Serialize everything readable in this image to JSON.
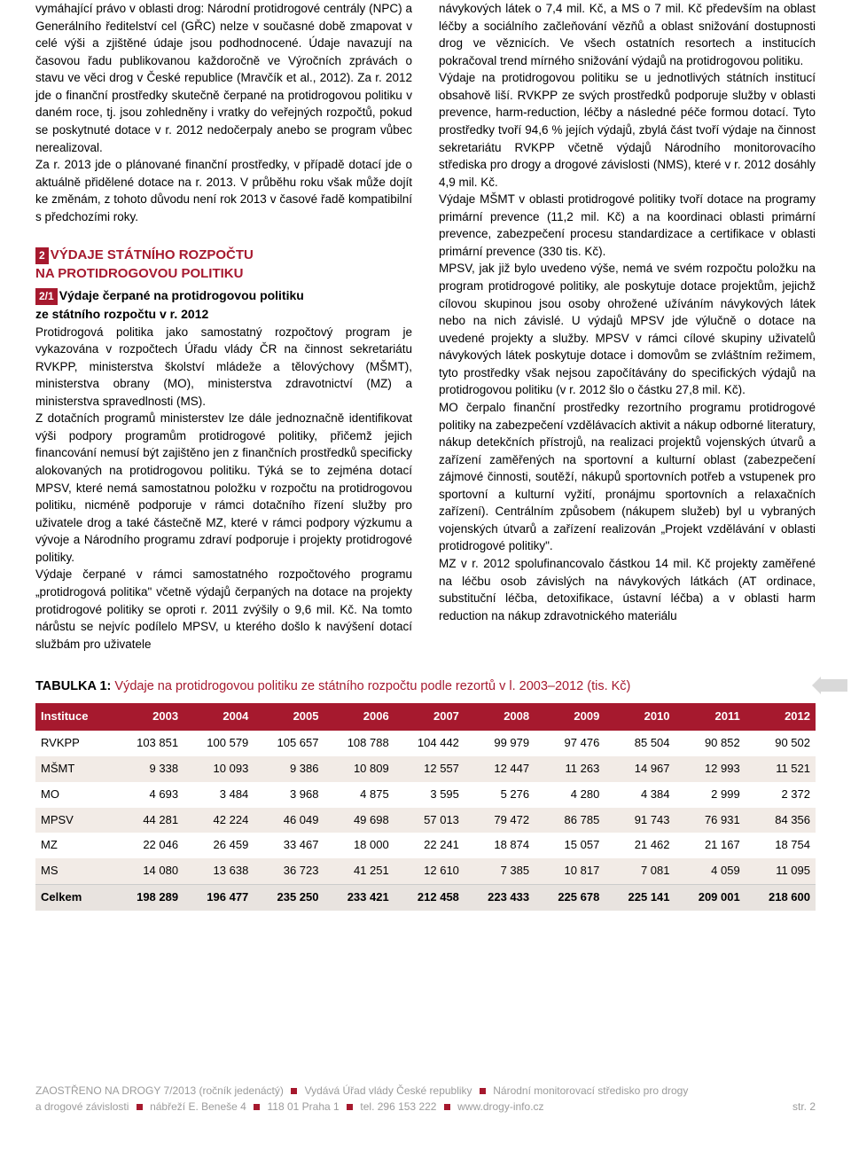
{
  "left": {
    "p1": "vymáhající právo v oblasti drog: Národní protidrogové centrály (NPC) a Generálního ředitelství cel (GŘC) nelze v současné době zmapovat v celé výši a zjištěné údaje jsou podhodnocené. Údaje navazují na časovou řadu publikovanou každoročně ve Výročních zprávách o stavu ve věci drog v České republice (Mravčík et al., 2012). Za r. 2012 jde o finanční prostředky skutečně čerpané na protidrogovou politiku v daném roce, tj. jsou zohledněny i vratky do veřejných rozpočtů, pokud se poskytnuté dotace v r. 2012 nedočerpaly anebo se program vůbec nerealizoval.",
    "p2": "Za r. 2013 jde o plánované finanční prostředky, v případě dotací jde o aktuálně přidělené dotace na r. 2013. V průběhu roku však může dojít ke změnám, z tohoto důvodu není rok 2013 v časové řadě kompatibilní s předchozími roky.",
    "badge2": "2",
    "h2a": "VÝDAJE STÁTNÍHO ROZPOČTU",
    "h2b": "NA PROTIDROGOVOU POLITIKU",
    "badge21": "2/1",
    "sub1a": "Výdaje čerpané na protidrogovou politiku",
    "sub1b": "ze státního rozpočtu v r. 2012",
    "p3": "Protidrogová politika jako samostatný rozpočtový program je vykazována v rozpočtech Úřadu vlády ČR na činnost sekretariátu RVKPP, ministerstva školství mládeže a tělovýchovy (MŠMT), ministerstva obrany (MO), ministerstva zdravotnictví (MZ) a ministerstva spravedlnosti (MS).",
    "p4": "Z dotačních programů ministerstev lze dále jednoznačně identifikovat výši podpory programům protidrogové politiky, přičemž jejich financování nemusí být zajištěno jen z finančních prostředků specificky alokovaných na protidrogovou politiku. Týká se to zejména dotací MPSV, které nemá samostatnou položku v rozpočtu na protidrogovou politiku, nicméně podporuje v rámci dotačního řízení služby pro uživatele drog a také částečně MZ, které v rámci podpory výzkumu a vývoje a Národního programu zdraví podporuje i projekty protidrogové politiky.",
    "p5": "Výdaje čerpané v rámci samostatného rozpočtového programu „protidrogová politika\" včetně výdajů čerpaných na dotace na projekty protidrogové politiky se oproti r. 2011 zvýšily o 9,6 mil. Kč. Na tomto nárůstu se nejvíc podílelo MPSV, u kterého došlo k navýšení dotací službám pro uživatele"
  },
  "right": {
    "p1": "návykových látek o 7,4 mil. Kč, a MS o 7 mil. Kč především na oblast léčby a sociálního začleňování vězňů a oblast snižování dostupnosti drog ve věznicích. Ve všech ostatních resortech a institucích pokračoval trend mírného snižování výdajů na protidrogovou politiku.",
    "p2": "Výdaje na protidrogovou politiku se u jednotlivých státních institucí obsahově liší. RVKPP ze svých prostředků podporuje služby v oblasti prevence, harm-reduction, léčby a následné péče formou dotací. Tyto prostředky tvoří 94,6 % jejích výdajů, zbylá část tvoří výdaje na činnost sekretariátu RVKPP včetně výdajů Národního monitorovacího střediska pro drogy a drogové závislosti (NMS), které v r. 2012 dosáhly 4,9 mil. Kč.",
    "p3": "Výdaje MŠMT v oblasti protidrogové politiky tvoří dotace na programy primární prevence (11,2 mil. Kč) a na koordinaci oblasti primární prevence, zabezpečení procesu standardizace a certifikace v oblasti primární prevence (330 tis. Kč).",
    "p4": "MPSV, jak již bylo uvedeno výše, nemá ve svém rozpočtu položku na program protidrogové politiky, ale poskytuje dotace projektům, jejichž cílovou skupinou jsou osoby ohrožené užíváním návykových látek nebo na nich závislé. U výdajů MPSV jde výlučně o dotace na uvedené projekty a služby. MPSV v rámci cílové skupiny uživatelů návykových látek poskytuje dotace i domovům se zvláštním režimem, tyto prostředky však nejsou započítávány do specifických výdajů na protidrogovou politiku (v r. 2012 šlo o částku 27,8 mil. Kč).",
    "p5": "MO čerpalo finanční prostředky rezortního programu protidrogové politiky na zabezpečení vzdělávacích aktivit a nákup odborné literatury, nákup detekčních přístrojů, na realizaci projektů vojenských útvarů a zařízení zaměřených na sportovní a kulturní oblast (zabezpečení zájmové činnosti, soutěží, nákupů sportovních potřeb a vstupenek pro sportovní a kulturní vyžití, pronájmu sportovních a relaxačních zařízení). Centrálním způsobem (nákupem služeb) byl u vybraných vojenských útvarů a zařízení realizován „Projekt vzdělávání v oblasti protidrogové politiky\".",
    "p6": "MZ v r. 2012 spolufinancovalo částkou 14 mil. Kč projekty zaměřené na léčbu osob závislých na návykových látkách (AT ordinace, substituční léčba, detoxifikace, ústavní léčba) a v oblasti harm reduction na nákup zdravotnického materiálu"
  },
  "table": {
    "title_strong": "TABULKA 1:",
    "title_rest": " Výdaje na protidrogovou politiku ze státního rozpočtu podle rezortů v l. 2003–2012 (tis. Kč)",
    "headers": [
      "Instituce",
      "2003",
      "2004",
      "2005",
      "2006",
      "2007",
      "2008",
      "2009",
      "2010",
      "2011",
      "2012"
    ],
    "rows": [
      {
        "stripe": false,
        "cells": [
          "RVKPP",
          "103 851",
          "100 579",
          "105 657",
          "108 788",
          "104 442",
          "99 979",
          "97 476",
          "85 504",
          "90 852",
          "90 502"
        ]
      },
      {
        "stripe": true,
        "cells": [
          "MŠMT",
          "9 338",
          "10 093",
          "9 386",
          "10 809",
          "12 557",
          "12 447",
          "11 263",
          "14 967",
          "12 993",
          "11 521"
        ]
      },
      {
        "stripe": false,
        "cells": [
          "MO",
          "4 693",
          "3 484",
          "3 968",
          "4 875",
          "3 595",
          "5 276",
          "4 280",
          "4 384",
          "2 999",
          "2 372"
        ]
      },
      {
        "stripe": true,
        "cells": [
          "MPSV",
          "44 281",
          "42 224",
          "46 049",
          "49 698",
          "57 013",
          "79 472",
          "86 785",
          "91 743",
          "76 931",
          "84 356"
        ]
      },
      {
        "stripe": false,
        "cells": [
          "MZ",
          "22 046",
          "26 459",
          "33 467",
          "18 000",
          "22 241",
          "18 874",
          "15 057",
          "21 462",
          "21 167",
          "18 754"
        ]
      },
      {
        "stripe": true,
        "cells": [
          "MS",
          "14 080",
          "13 638",
          "36 723",
          "41 251",
          "12 610",
          "7 385",
          "10 817",
          "7 081",
          "4 059",
          "11 095"
        ]
      }
    ],
    "total": [
      "Celkem",
      "198 289",
      "196 477",
      "235 250",
      "233 421",
      "212 458",
      "223 433",
      "225 678",
      "225 141",
      "209 001",
      "218 600"
    ]
  },
  "footer": {
    "line1a": "ZAOSTŘENO NA DROGY 7/2013 (ročník jedenáctý)",
    "line1b": "Vydává Úřad vlády České republiky",
    "line1c": "Národní monitorovací středisko pro drogy",
    "line2a": "a drogové závislosti",
    "line2b": "nábřeží E. Beneše 4",
    "line2c": "118 01 Praha 1",
    "line2d": "tel. 296 153 222",
    "line2e": "www.drogy-info.cz",
    "page": "str. 2"
  }
}
